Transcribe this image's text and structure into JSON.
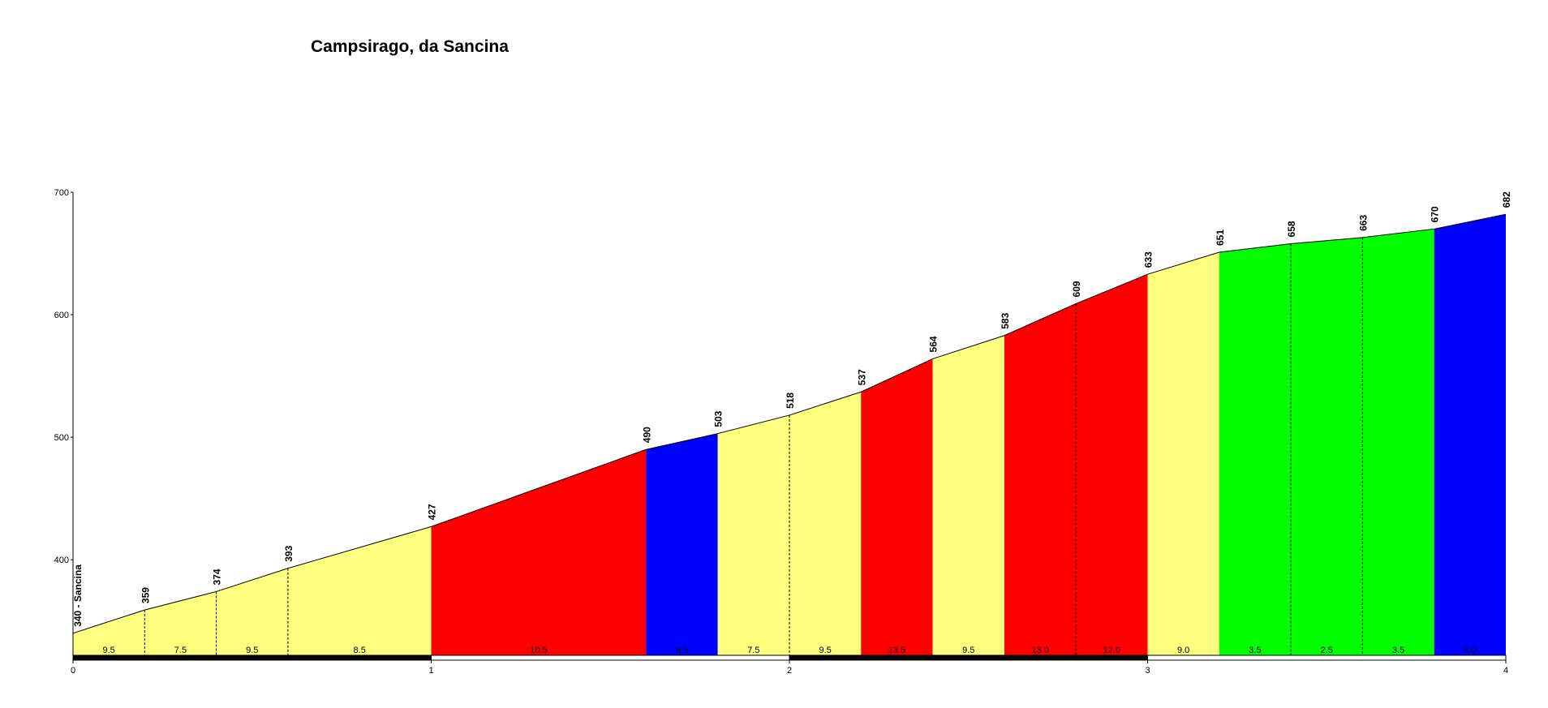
{
  "chart_data": {
    "type": "area",
    "title": "Campsirago, da Sancina",
    "xlabel": "",
    "ylabel": "",
    "xlim": [
      0,
      4
    ],
    "ylim": [
      322,
      700
    ],
    "y_ticks": [
      "400",
      "500",
      "600",
      "700"
    ],
    "y_tick_values": [
      400,
      500,
      600,
      700
    ],
    "x_ticks": [
      "0",
      "1",
      "2",
      "3",
      "4"
    ],
    "x_tick_values": [
      0,
      1,
      2,
      3,
      4
    ],
    "start_label": "340 - Sancina",
    "points": [
      {
        "x": 0.0,
        "elevation": 340,
        "label": ""
      },
      {
        "x": 0.2,
        "elevation": 359,
        "label": "359"
      },
      {
        "x": 0.4,
        "elevation": 374,
        "label": "374"
      },
      {
        "x": 0.6,
        "elevation": 393,
        "label": "393"
      },
      {
        "x": 1.0,
        "elevation": 427,
        "label": "427"
      },
      {
        "x": 1.6,
        "elevation": 490,
        "label": "490"
      },
      {
        "x": 1.8,
        "elevation": 503,
        "label": "503"
      },
      {
        "x": 2.0,
        "elevation": 518,
        "label": "518"
      },
      {
        "x": 2.2,
        "elevation": 537,
        "label": "537"
      },
      {
        "x": 2.4,
        "elevation": 564,
        "label": "564"
      },
      {
        "x": 2.6,
        "elevation": 583,
        "label": "583"
      },
      {
        "x": 2.8,
        "elevation": 609,
        "label": "609"
      },
      {
        "x": 3.0,
        "elevation": 633,
        "label": "633"
      },
      {
        "x": 3.2,
        "elevation": 651,
        "label": "651"
      },
      {
        "x": 3.4,
        "elevation": 658,
        "label": "658"
      },
      {
        "x": 3.6,
        "elevation": 663,
        "label": "663"
      },
      {
        "x": 3.8,
        "elevation": 670,
        "label": "670"
      },
      {
        "x": 4.0,
        "elevation": 682,
        "label": "682"
      }
    ],
    "segments": [
      {
        "x0": 0.0,
        "x1": 0.2,
        "gradient": "9.5",
        "color": "#ffff80"
      },
      {
        "x0": 0.2,
        "x1": 0.4,
        "gradient": "7.5",
        "color": "#ffff80"
      },
      {
        "x0": 0.4,
        "x1": 0.6,
        "gradient": "9.5",
        "color": "#ffff80"
      },
      {
        "x0": 0.6,
        "x1": 1.0,
        "gradient": "8.5",
        "color": "#ffff80"
      },
      {
        "x0": 1.0,
        "x1": 1.6,
        "gradient": "10.5",
        "color": "#ff0000"
      },
      {
        "x0": 1.6,
        "x1": 1.8,
        "gradient": "6.5",
        "color": "#0000ff"
      },
      {
        "x0": 1.8,
        "x1": 2.0,
        "gradient": "7.5",
        "color": "#ffff80"
      },
      {
        "x0": 2.0,
        "x1": 2.2,
        "gradient": "9.5",
        "color": "#ffff80"
      },
      {
        "x0": 2.2,
        "x1": 2.4,
        "gradient": "13.5",
        "color": "#ff0000"
      },
      {
        "x0": 2.4,
        "x1": 2.6,
        "gradient": "9.5",
        "color": "#ffff80"
      },
      {
        "x0": 2.6,
        "x1": 2.8,
        "gradient": "13.0",
        "color": "#ff0000"
      },
      {
        "x0": 2.8,
        "x1": 3.0,
        "gradient": "12.0",
        "color": "#ff0000"
      },
      {
        "x0": 3.0,
        "x1": 3.2,
        "gradient": "9.0",
        "color": "#ffff80"
      },
      {
        "x0": 3.2,
        "x1": 3.4,
        "gradient": "3.5",
        "color": "#00ff00"
      },
      {
        "x0": 3.4,
        "x1": 3.6,
        "gradient": "2.5",
        "color": "#00ff00"
      },
      {
        "x0": 3.6,
        "x1": 3.8,
        "gradient": "3.5",
        "color": "#00ff00"
      },
      {
        "x0": 3.8,
        "x1": 4.0,
        "gradient": "6.0",
        "color": "#0000ff"
      }
    ],
    "km_bar_colors": [
      "#000000",
      "#ffffff"
    ],
    "grid": false,
    "legend": "none"
  }
}
